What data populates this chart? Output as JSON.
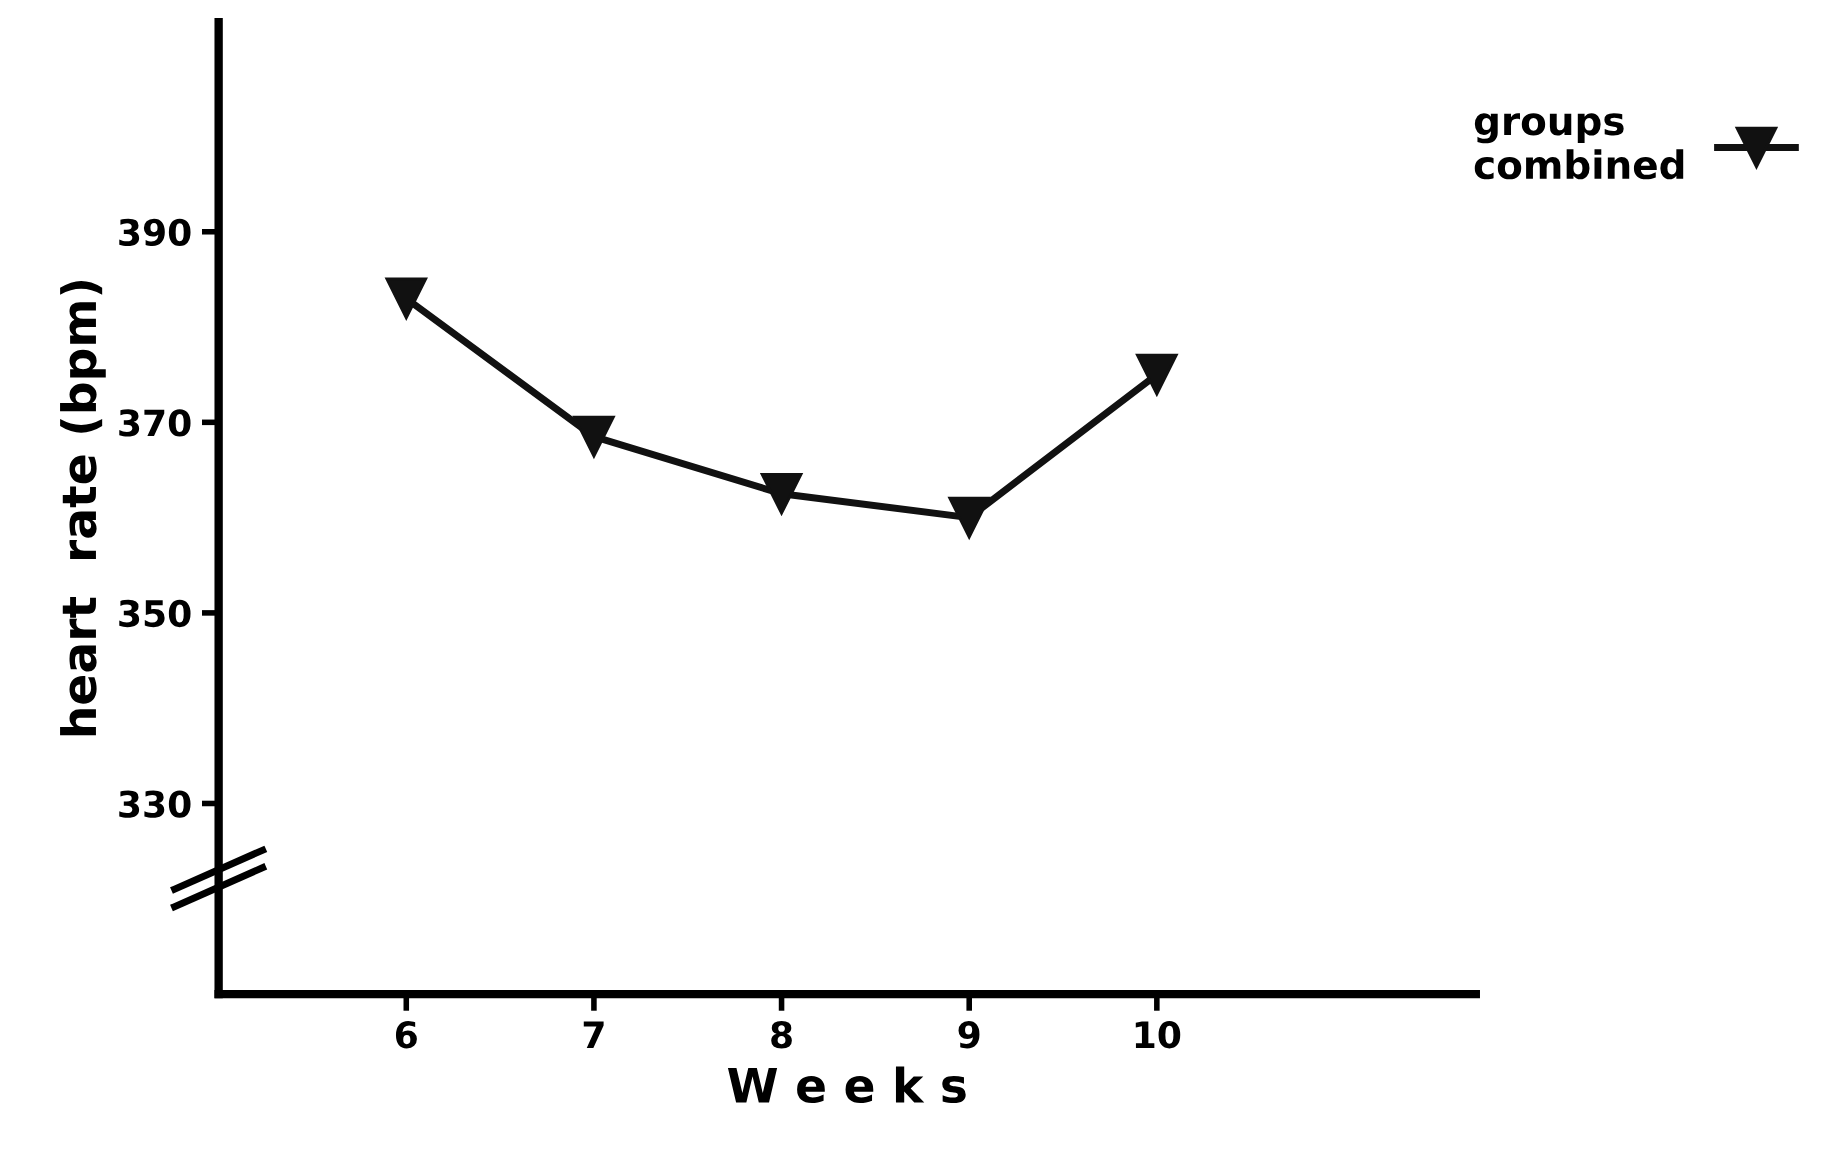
{
  "chart_data": {
    "type": "line",
    "xlabel": "W e e k s",
    "ylabel": "heart  rate (bpm)",
    "x": [
      6,
      7,
      8,
      9,
      10
    ],
    "series": [
      {
        "name": "groups\ncombined",
        "color": "#111111",
        "values": [
          383,
          368.5,
          362.5,
          360,
          375
        ]
      }
    ],
    "xlim": [
      5,
      11.7
    ],
    "xticks": [
      6,
      7,
      8,
      9,
      10
    ],
    "ylim": [
      310,
      412
    ],
    "yticks": [
      330,
      350,
      370,
      390
    ],
    "marker": "triangle",
    "line_style": "solid",
    "grid": false,
    "legend": "top right"
  }
}
